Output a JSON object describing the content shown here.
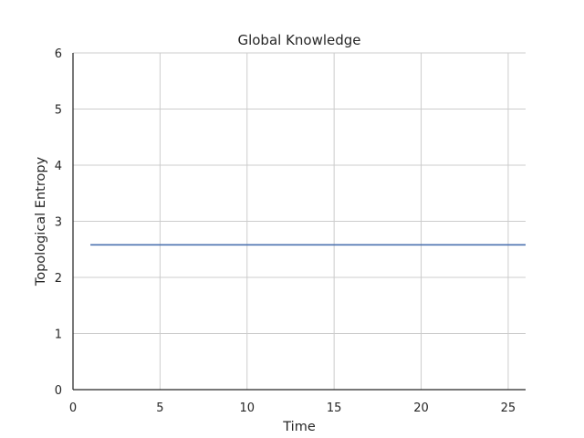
{
  "chart_data": {
    "type": "line",
    "title": "Global Knowledge",
    "xlabel": "Time",
    "ylabel": "Topological Entropy",
    "xlim": [
      0,
      26
    ],
    "ylim": [
      0,
      6
    ],
    "xticks": [
      0,
      5,
      10,
      15,
      20,
      25
    ],
    "yticks": [
      0,
      1,
      2,
      3,
      4,
      5,
      6
    ],
    "grid": true,
    "series": [
      {
        "color": "#4c72b0",
        "x": [
          1,
          2,
          3,
          4,
          5,
          6,
          7,
          8,
          9,
          10,
          11,
          12,
          13,
          14,
          15,
          16,
          17,
          18,
          19,
          20,
          21,
          22,
          23,
          24,
          25,
          26
        ],
        "y": [
          2.58,
          2.58,
          2.58,
          2.58,
          2.58,
          2.58,
          2.58,
          2.58,
          2.58,
          2.58,
          2.58,
          2.58,
          2.58,
          2.58,
          2.58,
          2.58,
          2.58,
          2.58,
          2.58,
          2.58,
          2.58,
          2.58,
          2.58,
          2.58,
          2.58,
          2.58
        ]
      }
    ]
  }
}
